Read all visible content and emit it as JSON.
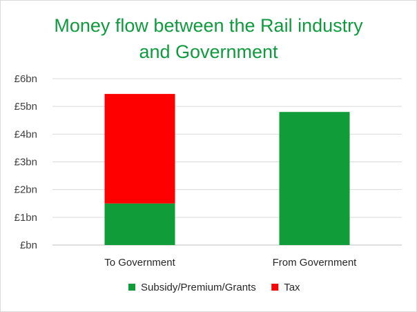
{
  "chart_data": {
    "type": "bar",
    "stacked": true,
    "title_lines": [
      "Money flow between the Rail industry",
      "and  Government"
    ],
    "categories": [
      "To Government",
      "From Government"
    ],
    "series": [
      {
        "name": "Subsidy/Premium/Grants",
        "color": "#119c3a",
        "values": [
          1.5,
          4.8
        ]
      },
      {
        "name": "Tax",
        "color": "#ff0000",
        "values": [
          3.95,
          0
        ]
      }
    ],
    "ylim": [
      0,
      6
    ],
    "y_ticks": [
      "£bn",
      "£1bn",
      "£2bn",
      "£3bn",
      "£4bn",
      "£5bn",
      "£6bn"
    ],
    "grid": true,
    "legend_position": "bottom"
  }
}
